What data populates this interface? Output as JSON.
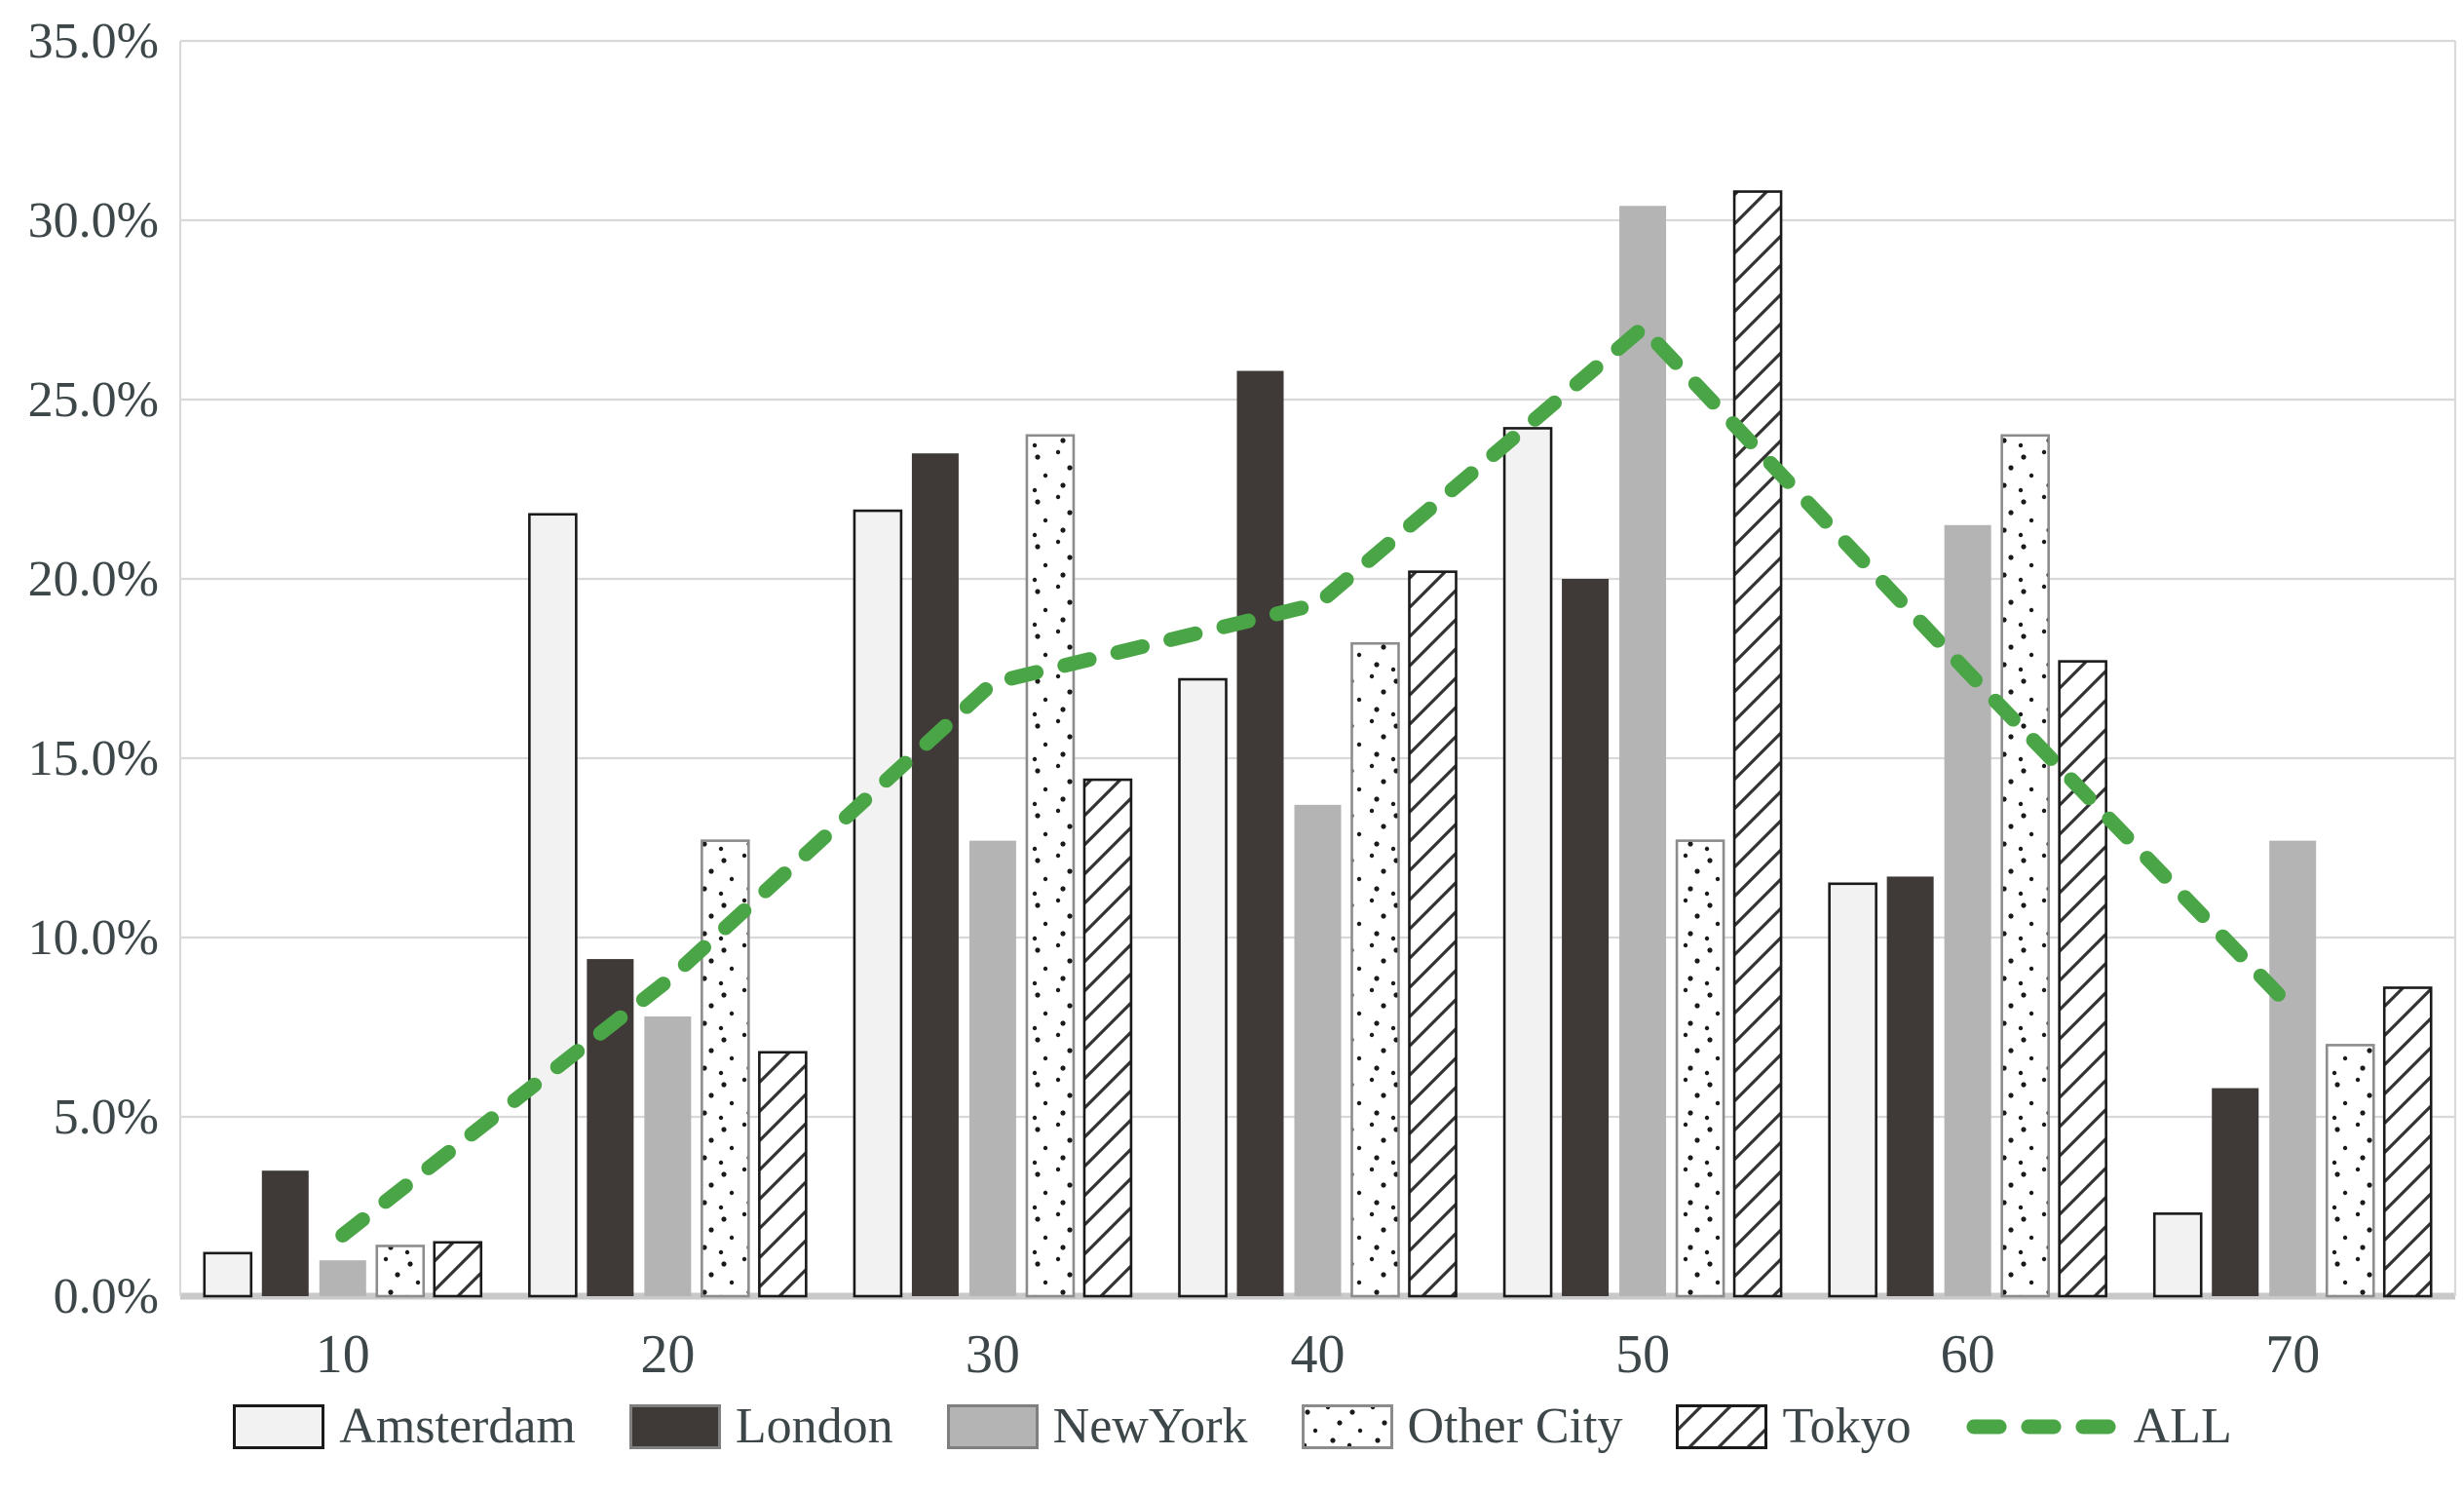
{
  "chart_data": {
    "type": "bar",
    "categories": [
      "10",
      "20",
      "30",
      "40",
      "50",
      "60",
      "70"
    ],
    "series": [
      {
        "name": "Amsterdam",
        "kind": "bar",
        "style": "solid",
        "fill": "#f2f2f2",
        "stroke": "#1a1a1a",
        "values": [
          1.2,
          21.8,
          21.9,
          17.2,
          24.2,
          11.5,
          2.3
        ]
      },
      {
        "name": "London",
        "kind": "bar",
        "style": "solid",
        "fill": "#3f3a37",
        "stroke": "none",
        "values": [
          3.5,
          9.4,
          23.5,
          25.8,
          20.0,
          11.7,
          5.8
        ]
      },
      {
        "name": "NewYork",
        "kind": "bar",
        "style": "solid",
        "fill": "#b4b4b4",
        "stroke": "none",
        "values": [
          1.0,
          7.8,
          12.7,
          13.7,
          30.4,
          21.5,
          12.7
        ]
      },
      {
        "name": "Other City",
        "kind": "bar",
        "style": "dots",
        "fill": "#ffffff",
        "stroke": "#8c8c8c",
        "values": [
          1.4,
          12.7,
          24.0,
          18.2,
          12.7,
          24.0,
          7.0
        ]
      },
      {
        "name": "Tokyo",
        "kind": "bar",
        "style": "hatch",
        "fill": "#ffffff",
        "stroke": "#1a1a1a",
        "values": [
          1.5,
          6.8,
          14.4,
          20.2,
          30.8,
          17.7,
          8.6
        ]
      },
      {
        "name": "ALL",
        "kind": "line",
        "style": "dashed-line",
        "color": "#4aa546",
        "values": [
          1.7,
          8.8,
          17.1,
          19.3,
          27.0,
          17.4,
          8.0
        ]
      }
    ],
    "title": "",
    "xlabel": "",
    "ylabel": "",
    "ylim": [
      0,
      35
    ],
    "ytick_step": 5,
    "ytick_labels": [
      "0.0%",
      "5.0%",
      "10.0%",
      "15.0%",
      "20.0%",
      "25.0%",
      "30.0%",
      "35.0%"
    ],
    "grid": true,
    "legend_position": "bottom",
    "axis_text_color": "#3d4749",
    "gridline_color": "#d9d9d9",
    "baseline_color": "#c9c9c9"
  }
}
